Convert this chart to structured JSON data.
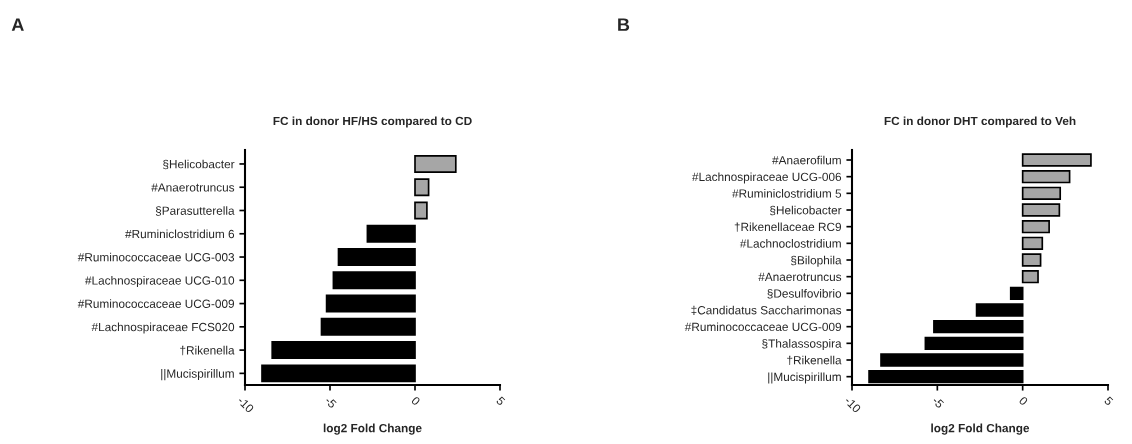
{
  "chart_data": [
    {
      "type": "bar",
      "orientation": "horizontal",
      "title": "FC in donor HF/HS compared to CD",
      "xlabel": "log2 Fold Change",
      "annotations": [
        "A"
      ],
      "categories": [
        "§Helicobacter",
        "#Anaerotruncus",
        "§Parasutterella",
        "#Ruminiclostridium 6",
        "#Ruminococcaceae UCG-003",
        "#Lachnospiraceae UCG-010",
        "#Ruminococcaceae UCG-009",
        "#Lachnospiraceae FCS020",
        "†Rikenella",
        "||Mucispirillum"
      ],
      "values": [
        2.4,
        0.8,
        0.7,
        -2.8,
        -4.5,
        -4.8,
        -5.2,
        -5.5,
        -8.4,
        -9.0
      ],
      "colors": [
        "#a6a6a6",
        "#a6a6a6",
        "#a6a6a6",
        "#000000",
        "#000000",
        "#000000",
        "#000000",
        "#000000",
        "#000000",
        "#000000"
      ],
      "xlim": [
        -10,
        5
      ],
      "xticks": [
        -10,
        -5,
        0,
        5
      ],
      "grid": false,
      "legend": false
    },
    {
      "type": "bar",
      "orientation": "horizontal",
      "title": "FC in donor DHT compared to Veh",
      "xlabel": "log2 Fold Change",
      "annotations": [
        "B"
      ],
      "categories": [
        "#Anaerofilum",
        "#Lachnospiraceae UCG-006",
        "#Ruminiclostridium 5",
        "§Helicobacter",
        "†Rikenellaceae RC9",
        "#Lachnoclostridium",
        "§Bilophila",
        "#Anaerotruncus",
        "§Desulfovibrio",
        "‡Candidatus Saccharimonas",
        "#Ruminococcaceae UCG-009",
        "§Thalassospira",
        "†Rikenella",
        "||Mucispirillum"
      ],
      "values": [
        4.0,
        2.75,
        2.2,
        2.15,
        1.55,
        1.15,
        1.05,
        0.9,
        -0.7,
        -2.7,
        -5.2,
        -5.7,
        -8.3,
        -9.0
      ],
      "colors": [
        "#a6a6a6",
        "#a6a6a6",
        "#a6a6a6",
        "#a6a6a6",
        "#a6a6a6",
        "#a6a6a6",
        "#a6a6a6",
        "#a6a6a6",
        "#000000",
        "#000000",
        "#000000",
        "#000000",
        "#000000",
        "#000000"
      ],
      "xlim": [
        -10,
        5
      ],
      "xticks": [
        -10,
        -5,
        0,
        5
      ],
      "grid": false,
      "legend": false
    }
  ]
}
